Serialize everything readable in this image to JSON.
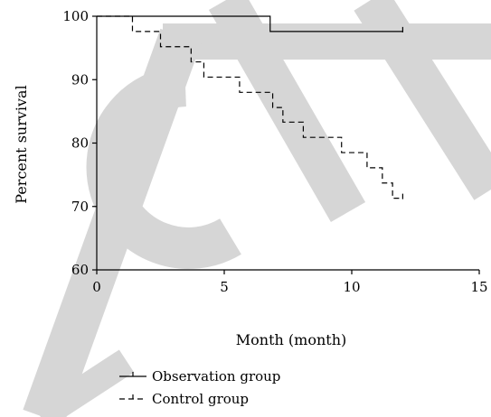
{
  "chart_data": {
    "type": "line",
    "title": "",
    "xlabel": "Month (month)",
    "ylabel": "Percent survival",
    "xlim": [
      0,
      15
    ],
    "ylim": [
      60,
      100
    ],
    "xticks": [
      0,
      5,
      10,
      15
    ],
    "yticks": [
      60,
      70,
      80,
      90,
      100
    ],
    "grid": false,
    "legend_position": "bottom-left",
    "step": true,
    "series": [
      {
        "name": "Observation group",
        "style": "solid",
        "color": "#000000",
        "x": [
          0,
          6.8,
          12.0
        ],
        "y": [
          100,
          97.6,
          97.6
        ]
      },
      {
        "name": "Control group",
        "style": "dashed",
        "color": "#000000",
        "x": [
          1.4,
          2.5,
          3.7,
          4.2,
          5.6,
          6.9,
          7.3,
          8.1,
          9.6,
          10.6,
          11.2,
          11.6,
          12.0
        ],
        "y": [
          97.6,
          95.2,
          92.8,
          90.4,
          88.0,
          85.6,
          83.3,
          80.9,
          78.5,
          76.1,
          73.7,
          71.3,
          71.3
        ],
        "start_x": 0,
        "start_y": 100
      }
    ],
    "watermark": {
      "color": "#d6d6d6"
    }
  }
}
